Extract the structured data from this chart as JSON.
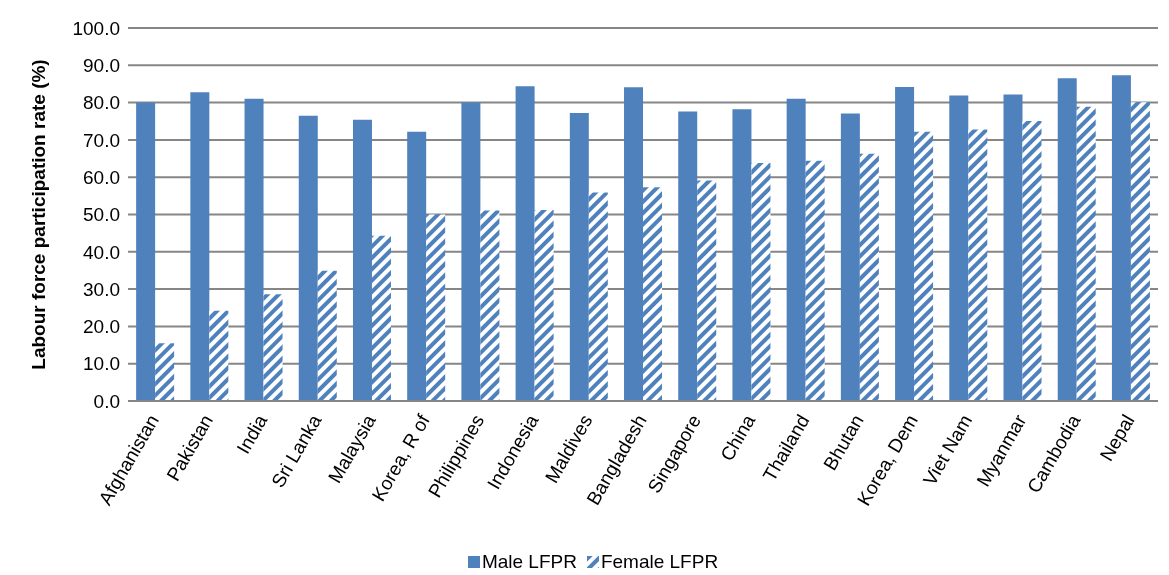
{
  "chart_data": {
    "type": "bar",
    "ylabel": "Labour force participation rate (%)",
    "categories": [
      "Afghanistan",
      "Pakistan",
      "India",
      "Sri Lanka",
      "Malaysia",
      "Korea, R of",
      "Philippines",
      "Indonesia",
      "Maldives",
      "Bangladesh",
      "Singapore",
      "China",
      "Thailand",
      "Bhutan",
      "Korea, Dem",
      "Viet Nam",
      "Myanmar",
      "Cambodia",
      "Nepal"
    ],
    "series": [
      {
        "name": "Male LFPR",
        "color": "#4f81bd",
        "values": [
          80.0,
          82.8,
          81.0,
          76.5,
          75.4,
          72.2,
          80.0,
          84.4,
          77.2,
          84.1,
          77.6,
          78.2,
          81.0,
          77.1,
          84.2,
          81.9,
          82.2,
          86.5,
          87.3
        ]
      },
      {
        "name": "Female LFPR",
        "color": "#4f81bd",
        "values": [
          15.5,
          24.2,
          28.6,
          34.9,
          44.3,
          50.0,
          51.1,
          51.2,
          55.9,
          57.3,
          59.1,
          63.8,
          64.4,
          66.3,
          72.2,
          72.8,
          75.1,
          78.9,
          80.1
        ]
      }
    ],
    "ylim": [
      0,
      100
    ],
    "yticks": [
      {
        "value": 0,
        "label": "0.0"
      },
      {
        "value": 10,
        "label": "10.0"
      },
      {
        "value": 20,
        "label": "20.0"
      },
      {
        "value": 30,
        "label": "30.0"
      },
      {
        "value": 40,
        "label": "40.0"
      },
      {
        "value": 50,
        "label": "50.0"
      },
      {
        "value": 60,
        "label": "60.0"
      },
      {
        "value": 70,
        "label": "70.0"
      },
      {
        "value": 80,
        "label": "80.0"
      },
      {
        "value": 90,
        "label": "90.0"
      },
      {
        "value": 100,
        "label": "100.0"
      }
    ],
    "grid": "y",
    "legend": "bottom"
  }
}
